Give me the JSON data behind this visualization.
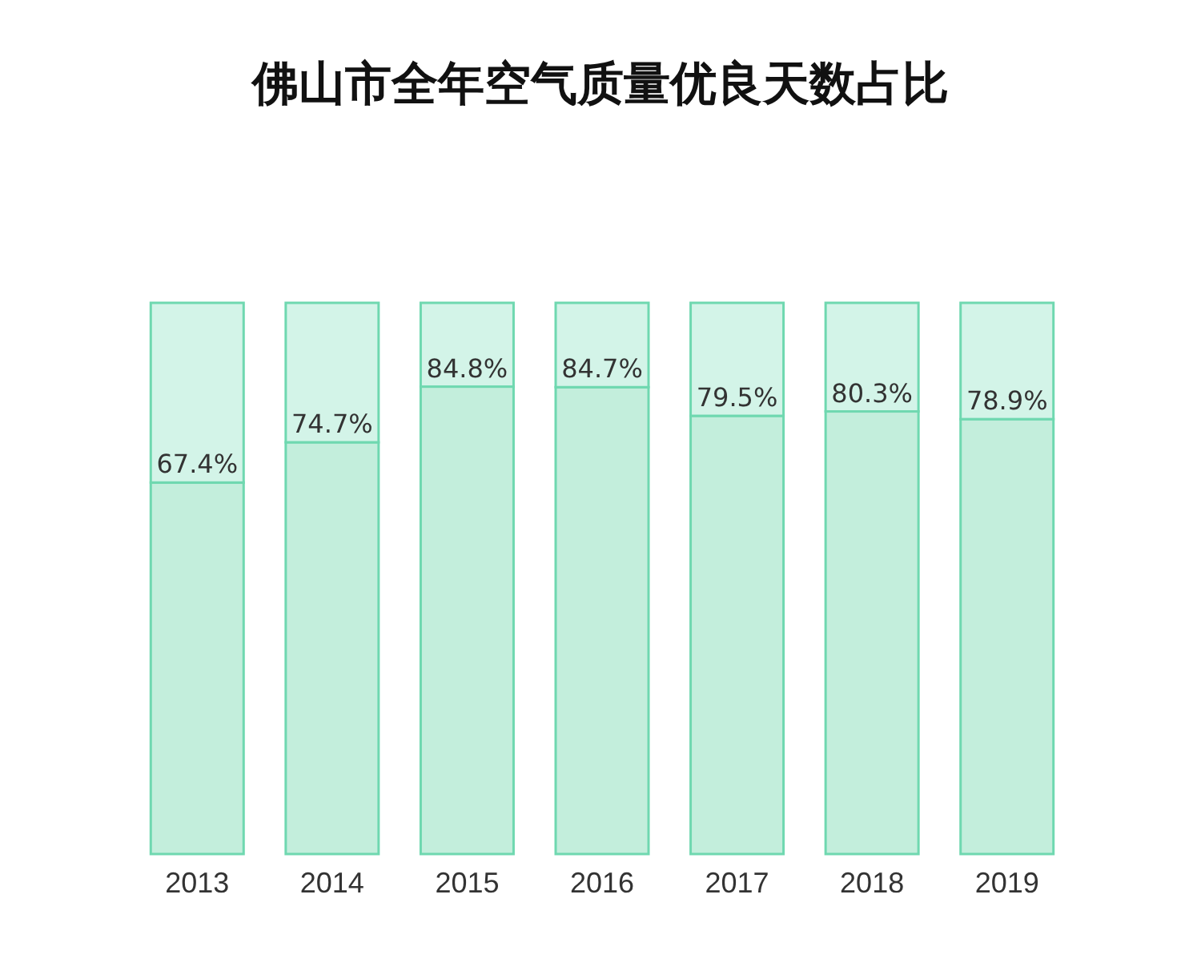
{
  "chart_data": {
    "type": "bar",
    "title": "佛山市全年空气质量优良天数占比",
    "categories": [
      "2013",
      "2014",
      "2015",
      "2016",
      "2017",
      "2018",
      "2019"
    ],
    "stacked": true,
    "tick_labels": "x",
    "series": [
      {
        "color": "#c3eedc",
        "values": [
          67.4,
          74.7,
          84.8,
          84.7,
          79.5,
          80.3,
          78.9
        ],
        "value_labels": [
          "67.4%",
          "74.7%",
          "84.8%",
          "84.7%",
          "79.5%",
          "80.3%",
          "78.9%"
        ]
      },
      {
        "color": "#d3f4e8",
        "values": [
          32.6,
          25.3,
          15.2,
          15.3,
          20.5,
          19.7,
          21.1
        ]
      }
    ]
  }
}
